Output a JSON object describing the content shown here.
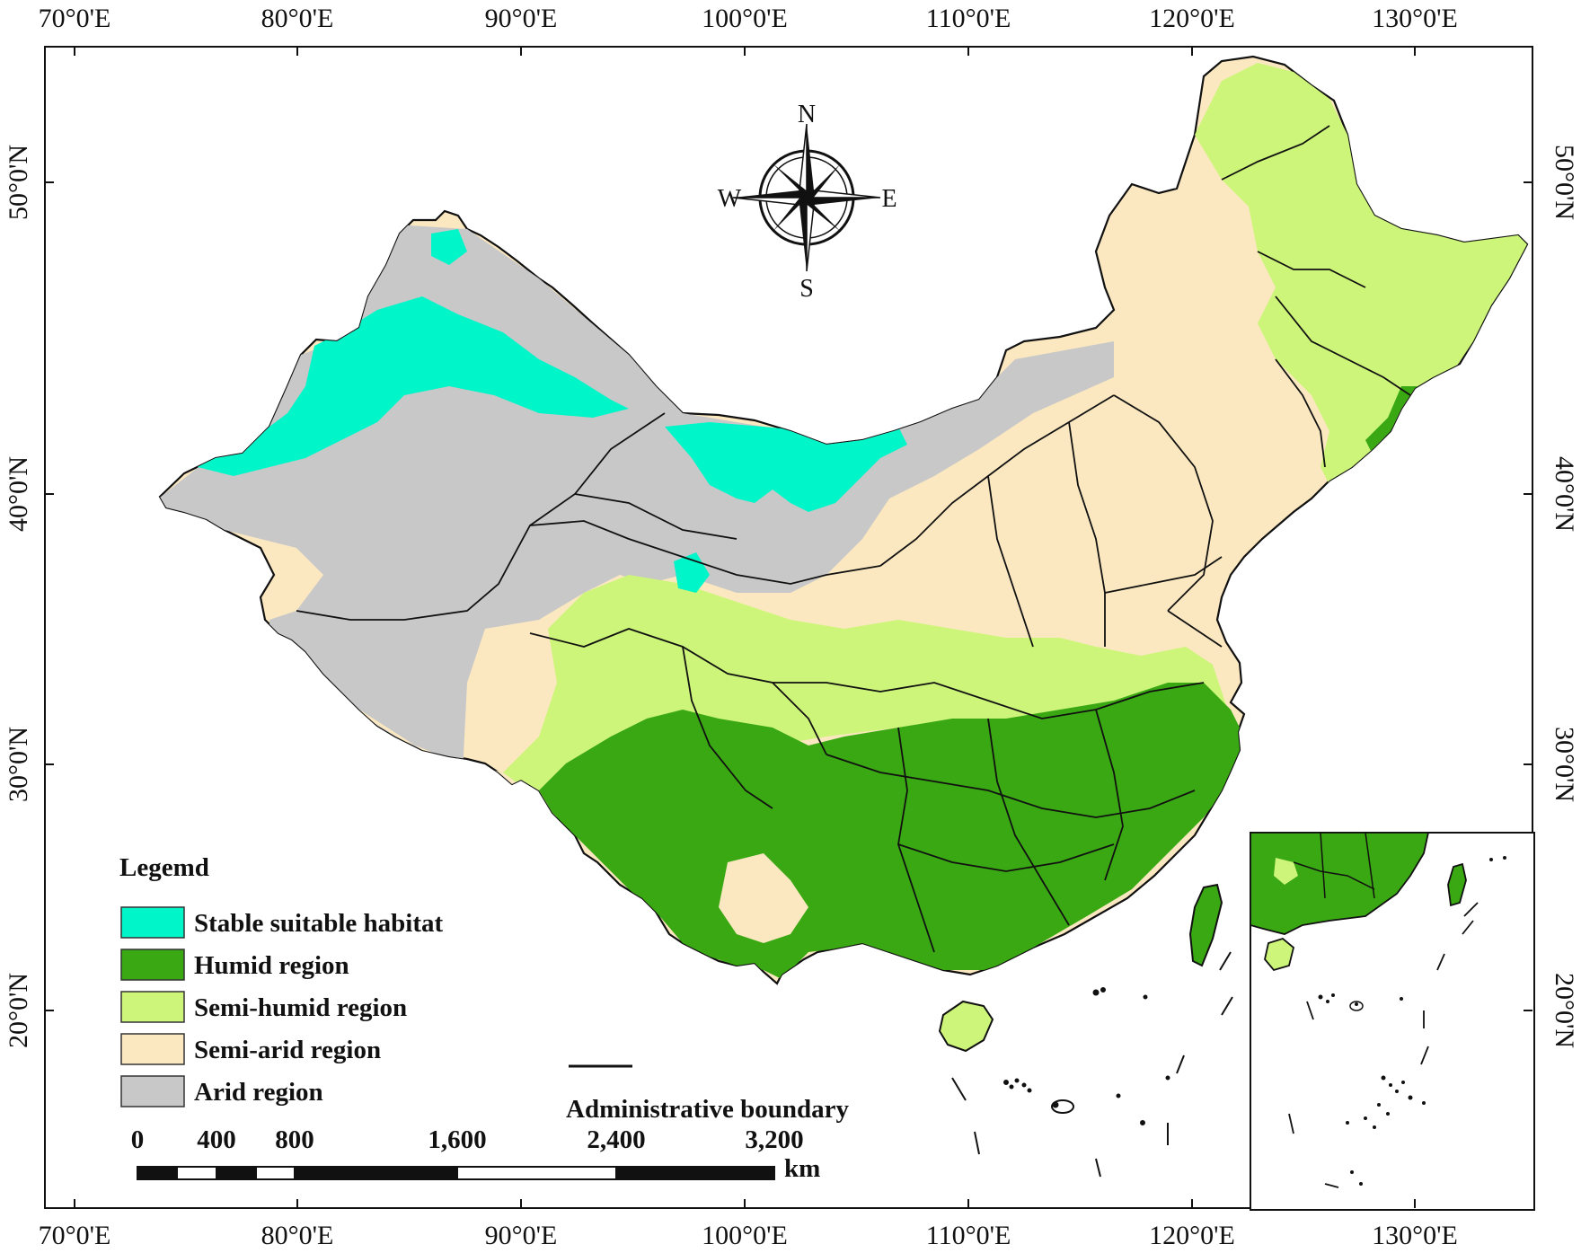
{
  "axes": {
    "lon_labels": [
      "70°0'E",
      "80°0'E",
      "90°0'E",
      "100°0'E",
      "110°0'E",
      "120°0'E",
      "130°0'E"
    ],
    "lat_labels": [
      "50°0'N",
      "40°0'N",
      "30°0'N",
      "20°0'N"
    ]
  },
  "compass": {
    "n": "N",
    "s": "S",
    "e": "E",
    "w": "W"
  },
  "legend": {
    "title": "Legemd",
    "items": [
      {
        "label": "Stable suitable habitat",
        "color": "#00f5c8"
      },
      {
        "label": "Humid region",
        "color": "#3aa813"
      },
      {
        "label": "Semi-humid region",
        "color": "#cdf57a"
      },
      {
        "label": "Semi-arid region",
        "color": "#fbe8c0"
      },
      {
        "label": "Arid region",
        "color": "#c8c8c8"
      }
    ],
    "boundary_label": "Administrative boundary"
  },
  "scale_bar": {
    "labels": [
      "0",
      "400",
      "800",
      "1,600",
      "2,400",
      "3,200"
    ],
    "unit": "km"
  },
  "colors": {
    "stable": "#00f5c8",
    "humid": "#3aa813",
    "semi_humid": "#cdf57a",
    "semi_arid": "#fbe8c0",
    "arid": "#c8c8c8",
    "boundary": "#111111"
  }
}
